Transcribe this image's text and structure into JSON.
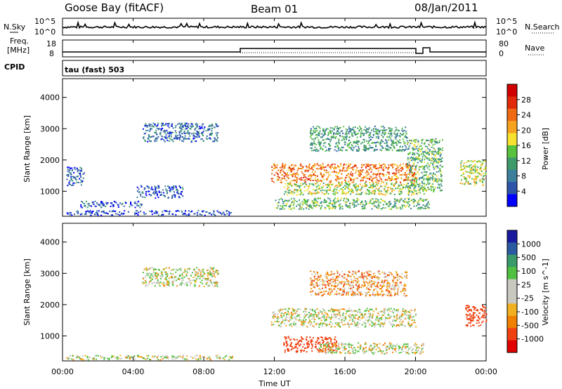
{
  "header": {
    "station": "Goose Bay (fitACF)",
    "beam": "Beam 01",
    "date": "08/Jan/2011"
  },
  "top_panel": {
    "left_label": "N.Sky",
    "right_label": "N.Search",
    "left_ticks": [
      "10^5",
      "10^0"
    ],
    "right_ticks": [
      "10^5",
      "10^0"
    ]
  },
  "freq_panel": {
    "left_label_1": "Freq.",
    "left_label_2": "[MHz]",
    "cpid_label": "CPID",
    "right_label": "Nave",
    "left_ticks": [
      "18",
      "8"
    ],
    "right_ticks": [
      "80",
      "0"
    ],
    "cpid_text": "tau (fast) 503"
  },
  "colors": {
    "power": [
      "#0000ff",
      "#2c55aa",
      "#3c7f9c",
      "#3e9a6a",
      "#58c23c",
      "#f7e030",
      "#f6a21e",
      "#f06a12",
      "#e02a0a",
      "#d00000"
    ],
    "velocity": [
      "#e00000",
      "#f04010",
      "#f08000",
      "#f0b020",
      "#c8c8c0",
      "#c8c8c0",
      "#50c040",
      "#3a9a6a",
      "#2a5aa0",
      "#1a1aa0"
    ]
  },
  "chart_data": [
    {
      "type": "heatmap",
      "title": "",
      "ylabel": "Slant Range [km]",
      "colorbar_label": "Power [dB]",
      "colorbar_ticks": [
        "28",
        "24",
        "20",
        "16",
        "12",
        "8",
        "4"
      ],
      "ylim": [
        200,
        4600
      ],
      "yticks": [
        1000,
        2000,
        3000,
        4000
      ],
      "xlim": [
        "00:00",
        "24:00"
      ],
      "regions": [
        {
          "t": [
            0.2,
            9.6
          ],
          "r": [
            250,
            400
          ],
          "level": 4
        },
        {
          "t": [
            1.0,
            4.5
          ],
          "r": [
            500,
            700
          ],
          "level": 6
        },
        {
          "t": [
            4.2,
            6.8
          ],
          "r": [
            800,
            1200
          ],
          "level": 5
        },
        {
          "t": [
            4.5,
            8.8
          ],
          "r": [
            2600,
            3200
          ],
          "level": 6
        },
        {
          "t": [
            0.2,
            1.2
          ],
          "r": [
            1200,
            1800
          ],
          "level": 5
        },
        {
          "t": [
            11.8,
            20.0
          ],
          "r": [
            1300,
            1900
          ],
          "level": 22
        },
        {
          "t": [
            12.5,
            20.5
          ],
          "r": [
            900,
            1300
          ],
          "level": 15
        },
        {
          "t": [
            14.0,
            19.5
          ],
          "r": [
            2300,
            3100
          ],
          "level": 10
        },
        {
          "t": [
            12.0,
            20.8
          ],
          "r": [
            450,
            800
          ],
          "level": 12
        },
        {
          "t": [
            22.5,
            24.0
          ],
          "r": [
            1200,
            2000
          ],
          "level": 16
        },
        {
          "t": [
            19.5,
            21.5
          ],
          "r": [
            1000,
            2700
          ],
          "level": 12
        }
      ]
    },
    {
      "type": "heatmap",
      "title": "",
      "ylabel": "Slant Range [km]",
      "xlabel": "Time UT",
      "colorbar_label": "Velocity [m s^-1]",
      "colorbar_ticks": [
        "1000",
        "500",
        "100",
        "25",
        "-25",
        "-100",
        "-500",
        "-1000"
      ],
      "ylim": [
        200,
        4600
      ],
      "yticks": [
        1000,
        2000,
        3000,
        4000
      ],
      "xlim": [
        "00:00",
        "24:00"
      ],
      "xticks": [
        "00:00",
        "04:00",
        "08:00",
        "12:00",
        "16:00",
        "20:00",
        "00:00"
      ],
      "regions": [
        {
          "t": [
            0.2,
            9.6
          ],
          "r": [
            250,
            400
          ],
          "value": 0
        },
        {
          "t": [
            4.5,
            8.8
          ],
          "r": [
            2600,
            3200
          ],
          "value": 0
        },
        {
          "t": [
            11.8,
            20.0
          ],
          "r": [
            1300,
            1900
          ],
          "value": 0
        },
        {
          "t": [
            12.5,
            15.5
          ],
          "r": [
            500,
            1000
          ],
          "value": -200
        },
        {
          "t": [
            14.5,
            20.5
          ],
          "r": [
            450,
            800
          ],
          "value": 0
        },
        {
          "t": [
            22.8,
            24.0
          ],
          "r": [
            1300,
            2000
          ],
          "value": -300
        },
        {
          "t": [
            14.0,
            19.5
          ],
          "r": [
            2300,
            3100
          ],
          "value": -60
        }
      ]
    }
  ]
}
